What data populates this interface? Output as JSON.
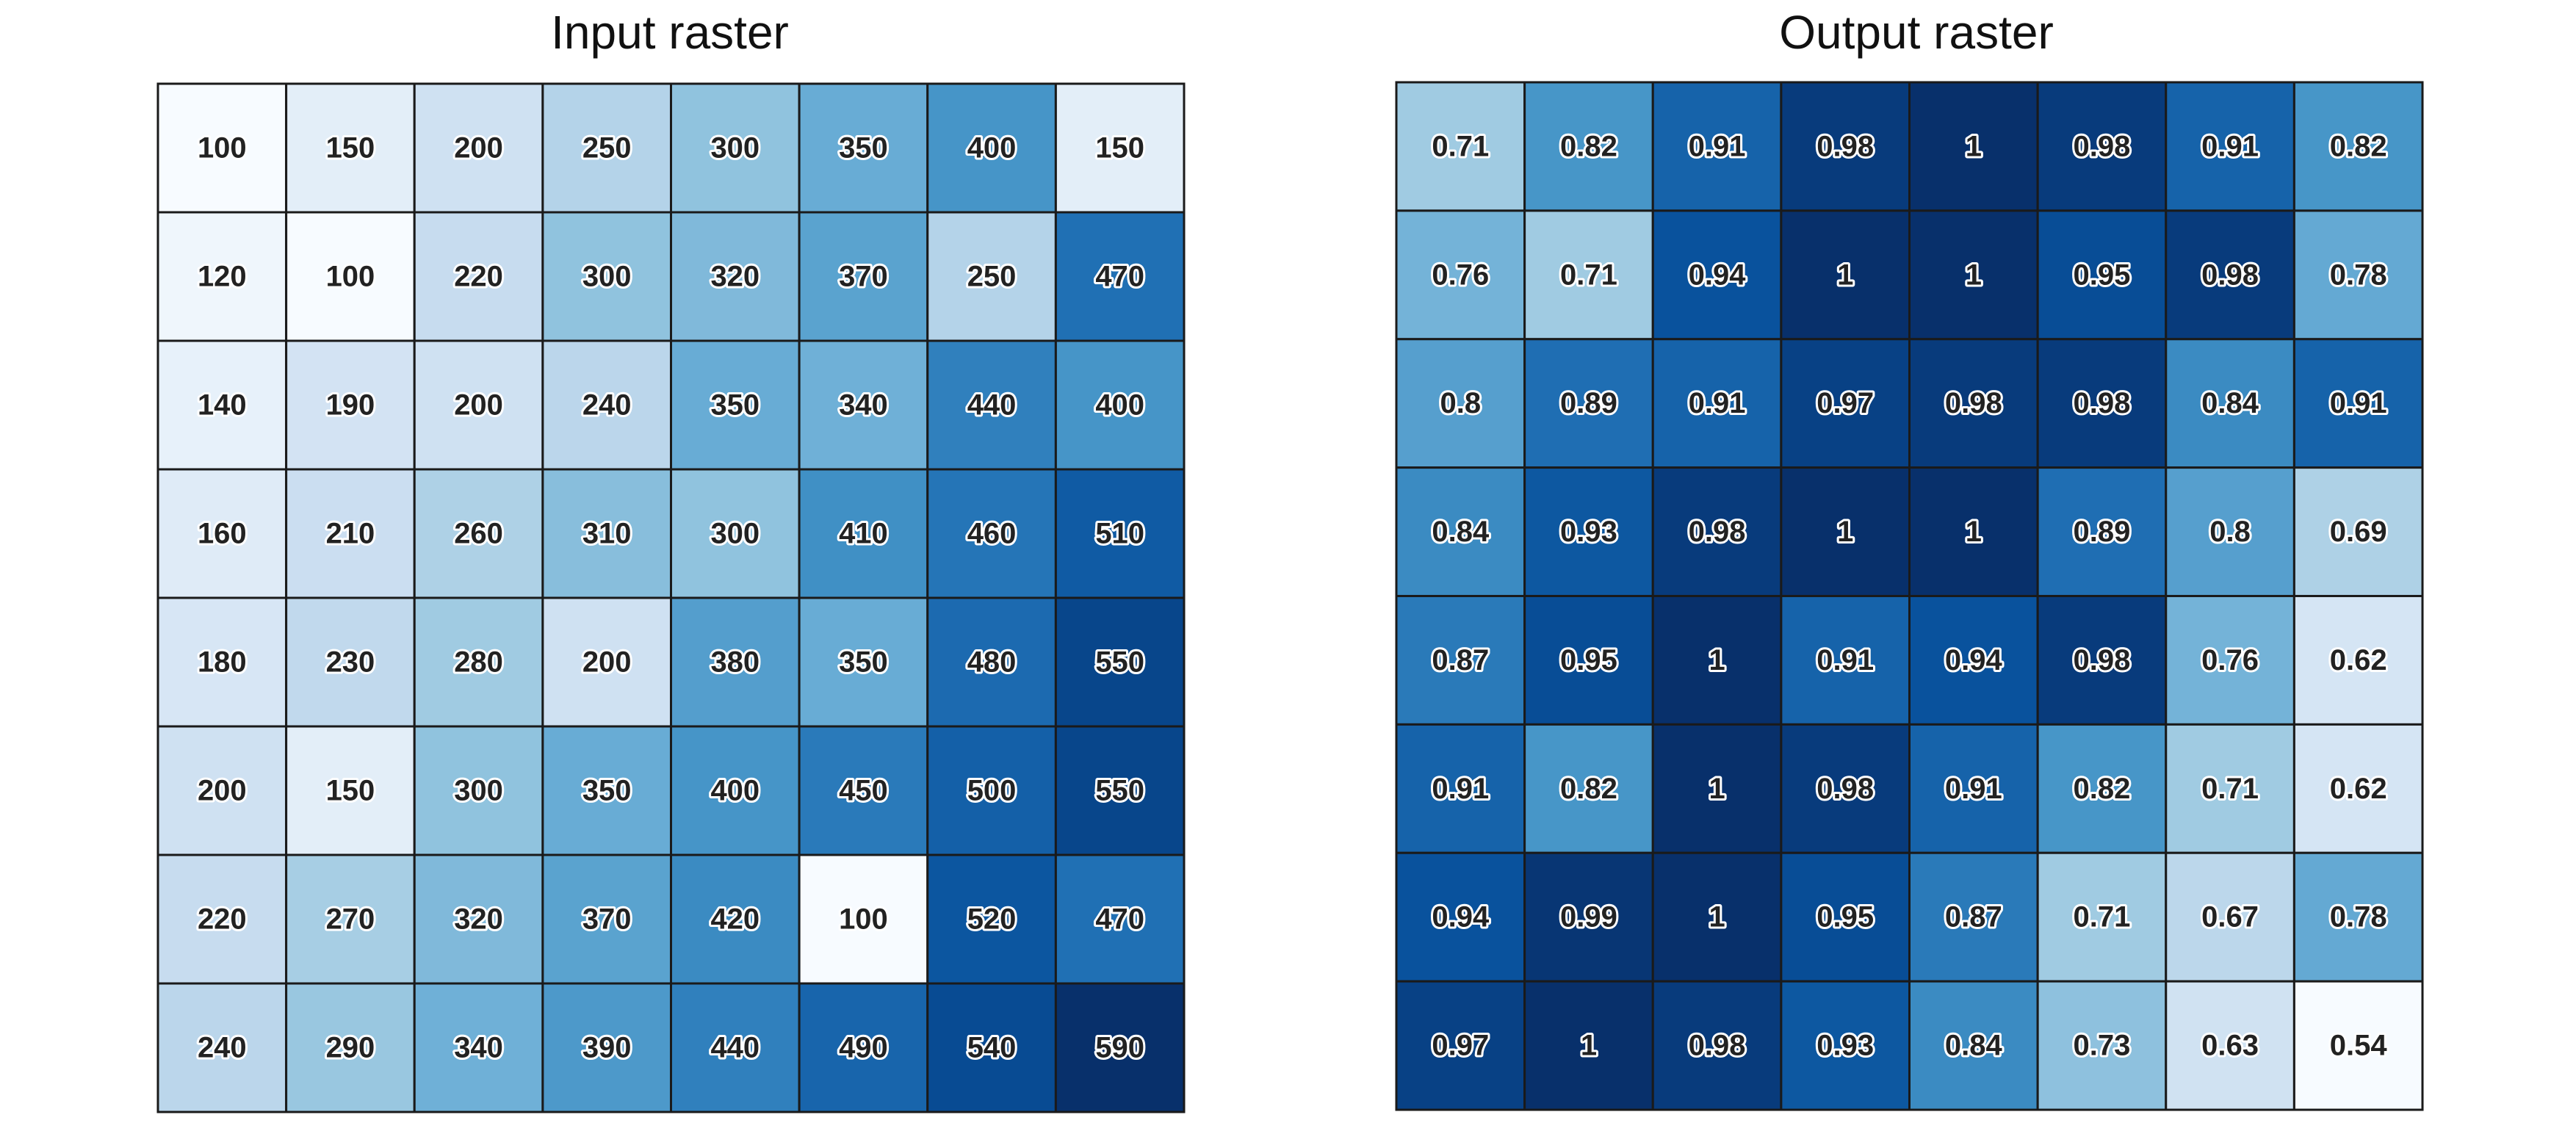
{
  "chart_data": [
    {
      "type": "heatmap",
      "title": "Input raster",
      "colormap": "Blues",
      "vmin": 100,
      "vmax": 590,
      "grid": true,
      "values": [
        [
          100,
          150,
          200,
          250,
          300,
          350,
          400,
          150
        ],
        [
          120,
          100,
          220,
          300,
          320,
          370,
          250,
          470
        ],
        [
          140,
          190,
          200,
          240,
          350,
          340,
          440,
          400
        ],
        [
          160,
          210,
          260,
          310,
          300,
          410,
          460,
          510
        ],
        [
          180,
          230,
          280,
          200,
          380,
          350,
          480,
          550
        ],
        [
          200,
          150,
          300,
          350,
          400,
          450,
          500,
          550
        ],
        [
          220,
          270,
          320,
          370,
          420,
          100,
          520,
          470
        ],
        [
          240,
          290,
          340,
          390,
          440,
          490,
          540,
          590
        ]
      ],
      "labels": [
        [
          "100",
          "150",
          "200",
          "250",
          "300",
          "350",
          "400",
          "150"
        ],
        [
          "120",
          "100",
          "220",
          "300",
          "320",
          "370",
          "250",
          "470"
        ],
        [
          "140",
          "190",
          "200",
          "240",
          "350",
          "340",
          "440",
          "400"
        ],
        [
          "160",
          "210",
          "260",
          "310",
          "300",
          "410",
          "460",
          "510"
        ],
        [
          "180",
          "230",
          "280",
          "200",
          "380",
          "350",
          "480",
          "550"
        ],
        [
          "200",
          "150",
          "300",
          "350",
          "400",
          "450",
          "500",
          "550"
        ],
        [
          "220",
          "270",
          "320",
          "370",
          "420",
          "100",
          "520",
          "470"
        ],
        [
          "240",
          "290",
          "340",
          "390",
          "440",
          "490",
          "540",
          "590"
        ]
      ]
    },
    {
      "type": "heatmap",
      "title": "Output raster",
      "colormap": "Blues",
      "vmin": 0.54,
      "vmax": 1,
      "grid": true,
      "values": [
        [
          0.71,
          0.82,
          0.91,
          0.98,
          1,
          0.98,
          0.91,
          0.82
        ],
        [
          0.76,
          0.71,
          0.94,
          1,
          1,
          0.95,
          0.98,
          0.78
        ],
        [
          0.8,
          0.89,
          0.91,
          0.97,
          0.98,
          0.98,
          0.84,
          0.91
        ],
        [
          0.84,
          0.93,
          0.98,
          1,
          1,
          0.89,
          0.8,
          0.69
        ],
        [
          0.87,
          0.95,
          1,
          0.91,
          0.94,
          0.98,
          0.76,
          0.62
        ],
        [
          0.91,
          0.82,
          1,
          0.98,
          0.91,
          0.82,
          0.71,
          0.62
        ],
        [
          0.94,
          0.99,
          1,
          0.95,
          0.87,
          0.71,
          0.67,
          0.78
        ],
        [
          0.97,
          1,
          0.98,
          0.93,
          0.84,
          0.73,
          0.63,
          0.54
        ]
      ],
      "labels": [
        [
          "0.71",
          "0.82",
          "0.91",
          "0.98",
          "1",
          "0.98",
          "0.91",
          "0.82"
        ],
        [
          "0.76",
          "0.71",
          "0.94",
          "1",
          "1",
          "0.95",
          "0.98",
          "0.78"
        ],
        [
          "0.8",
          "0.89",
          "0.91",
          "0.97",
          "0.98",
          "0.98",
          "0.84",
          "0.91"
        ],
        [
          "0.84",
          "0.93",
          "0.98",
          "1",
          "1",
          "0.89",
          "0.8",
          "0.69"
        ],
        [
          "0.87",
          "0.95",
          "1",
          "0.91",
          "0.94",
          "0.98",
          "0.76",
          "0.62"
        ],
        [
          "0.91",
          "0.82",
          "1",
          "0.98",
          "0.91",
          "0.82",
          "0.71",
          "0.62"
        ],
        [
          "0.94",
          "0.99",
          "1",
          "0.95",
          "0.87",
          "0.71",
          "0.67",
          "0.78"
        ],
        [
          "0.97",
          "1",
          "0.98",
          "0.93",
          "0.84",
          "0.73",
          "0.63",
          "0.54"
        ]
      ]
    }
  ]
}
